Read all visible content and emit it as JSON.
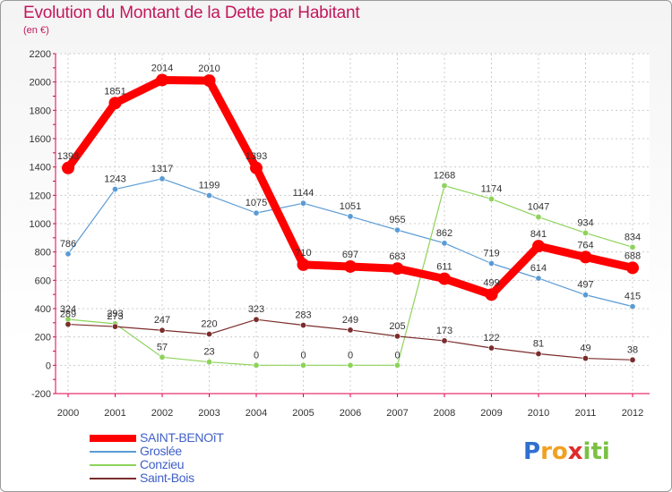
{
  "chart_data": {
    "type": "line",
    "title": "Evolution du Montant de la Dette par Habitant",
    "subtitle": "(en €)",
    "xlabel": "",
    "ylabel": "",
    "categories": [
      "2000",
      "2001",
      "2002",
      "2003",
      "2004",
      "2005",
      "2006",
      "2007",
      "2008",
      "2009",
      "2010",
      "2011",
      "2012"
    ],
    "ylim": [
      -200,
      2200
    ],
    "yticks": [
      -200,
      0,
      200,
      400,
      600,
      800,
      1000,
      1200,
      1400,
      1600,
      1800,
      2000,
      2200
    ],
    "series": [
      {
        "name": "SAINT-BENOîT",
        "color": "#ff0000",
        "width": 9,
        "marker": 7,
        "values": [
          1393,
          1851,
          2014,
          2010,
          1393,
          710,
          697,
          683,
          611,
          499,
          841,
          764,
          688
        ]
      },
      {
        "name": "Groslée",
        "color": "#5b9bd5",
        "width": 1.2,
        "marker": 3.2,
        "values": [
          786,
          1243,
          1317,
          1199,
          1075,
          1144,
          1051,
          955,
          862,
          719,
          614,
          497,
          415
        ]
      },
      {
        "name": "Conzieu",
        "color": "#8dd35a",
        "width": 1.2,
        "marker": 3.2,
        "values": [
          324,
          293,
          57,
          23,
          0,
          0,
          0,
          0,
          1268,
          1174,
          1047,
          934,
          834
        ]
      },
      {
        "name": "Saint-Bois",
        "color": "#7b2c2c",
        "width": 1.2,
        "marker": 3.2,
        "values": [
          289,
          273,
          247,
          220,
          323,
          283,
          249,
          205,
          173,
          122,
          81,
          49,
          38
        ]
      }
    ]
  },
  "logo": {
    "letters": [
      "P",
      "r",
      "o",
      "x",
      "i",
      "t",
      "i"
    ],
    "colors": [
      "#2f6fd0",
      "#f0a020",
      "#f0a020",
      "#e02a2a",
      "#7ac143",
      "#7ac143",
      "#7ac143"
    ]
  }
}
